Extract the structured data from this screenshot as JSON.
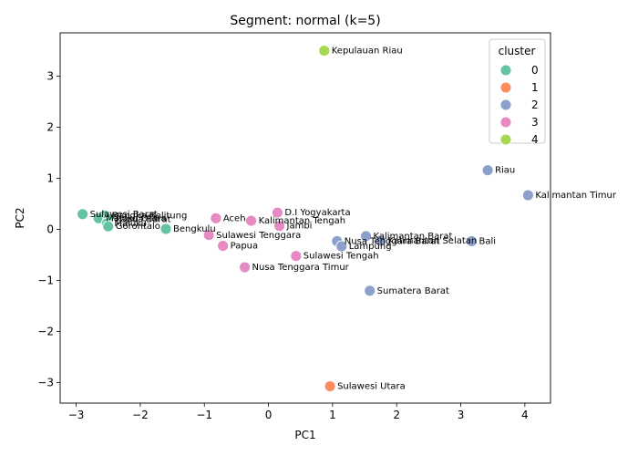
{
  "chart_data": {
    "type": "scatter",
    "title": "Segment: normal (k=5)",
    "xlabel": "PC1",
    "ylabel": "PC2",
    "xlim": [
      -3.25,
      4.4
    ],
    "ylim": [
      -3.4,
      3.85
    ],
    "xticks": [
      -3,
      -2,
      -1,
      0,
      1,
      2,
      3,
      4
    ],
    "yticks": [
      -3,
      -2,
      -1,
      0,
      1,
      2,
      3
    ],
    "xtick_labels": [
      "−3",
      "−2",
      "−1",
      "0",
      "1",
      "2",
      "3",
      "4"
    ],
    "ytick_labels": [
      "−3",
      "−2",
      "−1",
      "0",
      "1",
      "2",
      "3"
    ],
    "legend": {
      "title": "cluster",
      "position": "top-right",
      "entries": [
        {
          "label": "0",
          "color": "#66c2a5"
        },
        {
          "label": "1",
          "color": "#fc8d62"
        },
        {
          "label": "2",
          "color": "#8da0cb"
        },
        {
          "label": "3",
          "color": "#e78ac3"
        },
        {
          "label": "4",
          "color": "#a6d854"
        }
      ]
    },
    "points": [
      {
        "label": "Kepulauan Riau",
        "x": 0.87,
        "y": 3.5,
        "cluster": 4
      },
      {
        "label": "Riau",
        "x": 3.42,
        "y": 1.16,
        "cluster": 2
      },
      {
        "label": "Kalimantan Timur",
        "x": 4.05,
        "y": 0.67,
        "cluster": 2
      },
      {
        "label": "Sulawesi Barat",
        "x": -2.9,
        "y": 0.3,
        "cluster": 0
      },
      {
        "label": "Bangka Belitung",
        "x": -2.55,
        "y": 0.27,
        "cluster": 0
      },
      {
        "label": "Maluku Utara",
        "x": -2.65,
        "y": 0.22,
        "cluster": 0
      },
      {
        "label": "Papua Barat",
        "x": -2.5,
        "y": 0.2,
        "cluster": 0
      },
      {
        "label": "Maluku",
        "x": -2.52,
        "y": 0.12,
        "cluster": 0
      },
      {
        "label": "Gorontalo",
        "x": -2.5,
        "y": 0.06,
        "cluster": 0
      },
      {
        "label": "Bengkulu",
        "x": -1.6,
        "y": 0.01,
        "cluster": 0
      },
      {
        "label": "D.I Yogyakarta",
        "x": 0.14,
        "y": 0.33,
        "cluster": 3
      },
      {
        "label": "Aceh",
        "x": -0.82,
        "y": 0.22,
        "cluster": 3
      },
      {
        "label": "Kalimantan Tengah",
        "x": -0.27,
        "y": 0.17,
        "cluster": 3
      },
      {
        "label": "Jambi",
        "x": 0.17,
        "y": 0.07,
        "cluster": 3
      },
      {
        "label": "Sulawesi Tenggara",
        "x": -0.93,
        "y": -0.11,
        "cluster": 3
      },
      {
        "label": "Papua",
        "x": -0.71,
        "y": -0.32,
        "cluster": 3
      },
      {
        "label": "Sulawesi Tengah",
        "x": 0.43,
        "y": -0.52,
        "cluster": 3
      },
      {
        "label": "Nusa Tenggara Timur",
        "x": -0.37,
        "y": -0.74,
        "cluster": 3
      },
      {
        "label": "Kalimantan Barat",
        "x": 1.52,
        "y": -0.13,
        "cluster": 2
      },
      {
        "label": "Nusa Tenggara Barat",
        "x": 1.07,
        "y": -0.23,
        "cluster": 2
      },
      {
        "label": "Kalimantan Selatan",
        "x": 1.75,
        "y": -0.22,
        "cluster": 2
      },
      {
        "label": "Lampung",
        "x": 1.14,
        "y": -0.33,
        "cluster": 2
      },
      {
        "label": "Bali",
        "x": 3.17,
        "y": -0.23,
        "cluster": 2
      },
      {
        "label": "Sumatera Barat",
        "x": 1.58,
        "y": -1.2,
        "cluster": 2
      },
      {
        "label": "Sulawesi Utara",
        "x": 0.96,
        "y": -3.07,
        "cluster": 1
      }
    ]
  }
}
